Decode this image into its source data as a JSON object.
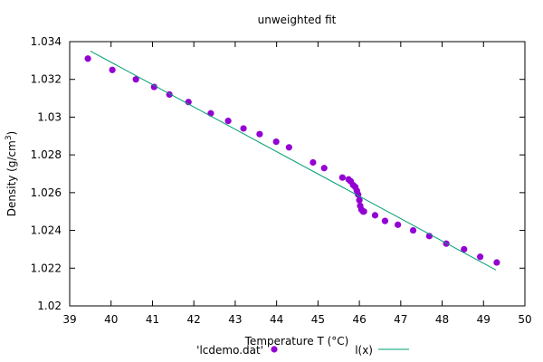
{
  "chart_data": {
    "type": "scatter",
    "title": "unweighted fit",
    "xlabel": "Temperature T (°C)",
    "ylabel": "Density (g/cm³)",
    "ylabel_base": "Density (g/cm",
    "ylabel_sup": "3",
    "ylabel_close": ")",
    "xlim": [
      39,
      50
    ],
    "ylim": [
      1.02,
      1.034
    ],
    "xticks": [
      "39",
      "40",
      "41",
      "42",
      "43",
      "44",
      "45",
      "46",
      "47",
      "48",
      "49",
      "50"
    ],
    "yticks": [
      "1.02",
      "1.022",
      "1.024",
      "1.026",
      "1.028",
      "1.03",
      "1.032",
      "1.034"
    ],
    "grid": false,
    "legend_position": "bottom",
    "series": [
      {
        "name": "'lcdemo.dat'",
        "kind": "points",
        "color": "#9400d3",
        "x": [
          39.44,
          40.03,
          40.6,
          41.04,
          41.41,
          41.87,
          42.41,
          42.83,
          43.2,
          43.59,
          43.99,
          44.3,
          44.88,
          45.15,
          45.59,
          45.74,
          45.79,
          45.85,
          45.9,
          45.94,
          45.97,
          46.0,
          46.02,
          46.05,
          46.09,
          46.11,
          46.38,
          46.62,
          46.93,
          47.3,
          47.69,
          48.1,
          48.53,
          48.92,
          49.32
        ],
        "y": [
          1.0331,
          1.0325,
          1.032,
          1.0316,
          1.0312,
          1.0308,
          1.0302,
          1.0298,
          1.0294,
          1.0291,
          1.0287,
          1.0284,
          1.0276,
          1.0273,
          1.0268,
          1.0267,
          1.0266,
          1.0264,
          1.0263,
          1.0261,
          1.0259,
          1.0256,
          1.0253,
          1.0251,
          1.025,
          1.025,
          1.0248,
          1.0245,
          1.0243,
          1.024,
          1.0237,
          1.0233,
          1.023,
          1.0226,
          1.0223
        ]
      },
      {
        "name": "l(x)",
        "kind": "line",
        "color": "#009e73",
        "x": [
          39.5,
          49.3
        ],
        "y": [
          1.0335,
          1.0219
        ]
      }
    ]
  }
}
